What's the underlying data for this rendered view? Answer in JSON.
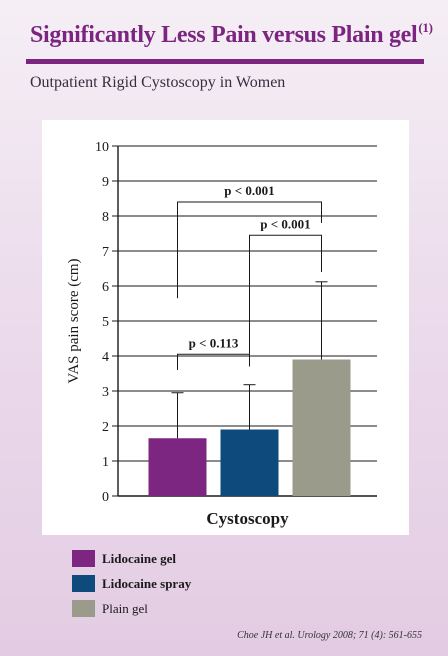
{
  "header": {
    "title": "Significantly Less Pain versus Plain gel",
    "title_ref": "(1)",
    "subtitle": "Outpatient Rigid Cystoscopy in Women"
  },
  "chart_data": {
    "type": "bar",
    "categories": [
      "Lidocaine gel",
      "Lidocaine spray",
      "Plain gel"
    ],
    "values": [
      1.65,
      1.9,
      3.9
    ],
    "error_upper": [
      2.95,
      3.18,
      6.12
    ],
    "colors": [
      "#7d2681",
      "#0f4a7c",
      "#9b9b8c"
    ],
    "xlabel": "Cystoscopy",
    "ylabel": "VAS pain score (cm)",
    "ylim": [
      0,
      10
    ],
    "yticks": [
      "0",
      "1",
      "2",
      "3",
      "4",
      "5",
      "6",
      "7",
      "8",
      "9",
      "10"
    ],
    "grid": true,
    "annotations": [
      {
        "text": "p < 0.113",
        "from": 0,
        "to": 1,
        "y": 4.05,
        "left_end": 3.6,
        "right_end": 3.7
      },
      {
        "text": "p < 0.001",
        "from": 1,
        "to": 2,
        "y": 7.45,
        "left_end": 4.0,
        "right_end": 6.4
      },
      {
        "text": "p < 0.001",
        "from": 0,
        "to": 2,
        "y": 8.4,
        "left_end": 5.65,
        "right_end": 7.8
      }
    ]
  },
  "legend": {
    "items": [
      {
        "label": "Lidocaine gel",
        "color": "#7d2681",
        "bold": true
      },
      {
        "label": "Lidocaine spray",
        "color": "#0f4a7c",
        "bold": true
      },
      {
        "label": "Plain gel",
        "color": "#9b9b8c",
        "bold": false
      }
    ]
  },
  "citation": "Choe JH et al. Urology 2008; 71 (4): 561-655"
}
